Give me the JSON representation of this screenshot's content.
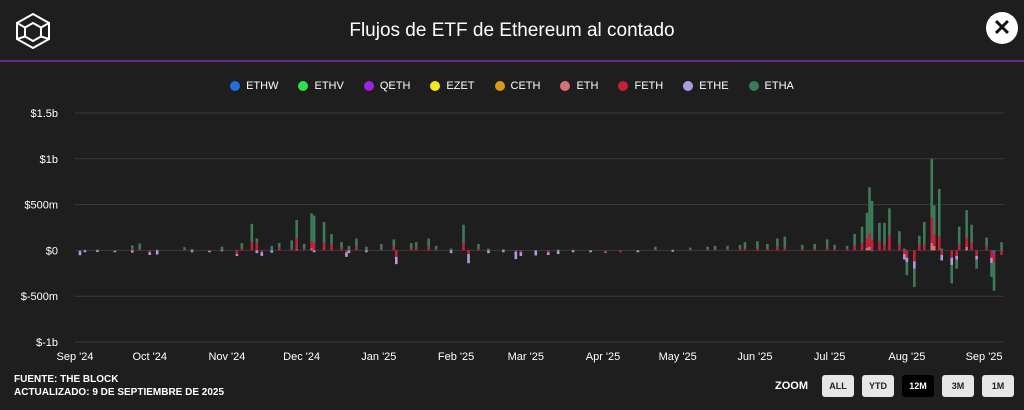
{
  "header": {
    "title": "Flujos de ETF de Ethereum al contado"
  },
  "legend": [
    {
      "name": "ETHW",
      "color": "#1f6fe0"
    },
    {
      "name": "ETHV",
      "color": "#2ee04a"
    },
    {
      "name": "QETH",
      "color": "#9a24e0"
    },
    {
      "name": "EZET",
      "color": "#f2e81a"
    },
    {
      "name": "CETH",
      "color": "#d99a1a"
    },
    {
      "name": "ETH",
      "color": "#d9707a"
    },
    {
      "name": "FETH",
      "color": "#c4203a"
    },
    {
      "name": "ETHE",
      "color": "#b09be0"
    },
    {
      "name": "ETHA",
      "color": "#3d7a5a"
    }
  ],
  "footer": {
    "source": "FUENTE: THE BLOCK",
    "updated": "ACTUALIZADO: 9 DE SEPTIEMBRE DE 2025"
  },
  "zoom": {
    "label": "ZOOM",
    "buttons": [
      {
        "label": "ALL",
        "active": false
      },
      {
        "label": "YTD",
        "active": false
      },
      {
        "label": "12M",
        "active": true
      },
      {
        "label": "3M",
        "active": false
      },
      {
        "label": "1M",
        "active": false
      }
    ]
  },
  "chart_data": {
    "type": "bar",
    "stacked": true,
    "xlabel": "",
    "ylabel": "",
    "ylim": [
      -1000,
      1500
    ],
    "y_ticks": [
      {
        "value": 1500,
        "label": "$1.5b"
      },
      {
        "value": 1000,
        "label": "$1b"
      },
      {
        "value": 500,
        "label": "$500m"
      },
      {
        "value": 0,
        "label": "$0"
      },
      {
        "value": -500,
        "label": "$-500m"
      },
      {
        "value": -1000,
        "label": "$-1b"
      }
    ],
    "x_range": [
      "2024-09-01",
      "2025-09-09"
    ],
    "x_ticks": [
      {
        "date": "2024-09-01",
        "label": "Sep '24"
      },
      {
        "date": "2024-10-01",
        "label": "Oct '24"
      },
      {
        "date": "2024-11-01",
        "label": "Nov '24"
      },
      {
        "date": "2024-12-01",
        "label": "Dec '24"
      },
      {
        "date": "2025-01-01",
        "label": "Jan '25"
      },
      {
        "date": "2025-02-01",
        "label": "Feb '25"
      },
      {
        "date": "2025-03-01",
        "label": "Mar '25"
      },
      {
        "date": "2025-04-01",
        "label": "Apr '25"
      },
      {
        "date": "2025-05-01",
        "label": "May '25"
      },
      {
        "date": "2025-06-01",
        "label": "Jun '25"
      },
      {
        "date": "2025-07-01",
        "label": "Jul '25"
      },
      {
        "date": "2025-08-01",
        "label": "Aug '25"
      },
      {
        "date": "2025-09-01",
        "label": "Sep '25"
      }
    ],
    "grid": true,
    "legend_position": "top-center",
    "series_names": [
      "ETHW",
      "ETHV",
      "QETH",
      "EZET",
      "CETH",
      "ETH",
      "FETH",
      "ETHE",
      "ETHA"
    ],
    "daily_flows": [
      {
        "date": "2024-09-03",
        "ETHE": -48,
        "FETH": -5
      },
      {
        "date": "2024-09-05",
        "ETHE": -20,
        "ETHA": 8
      },
      {
        "date": "2024-09-10",
        "ETHA": 10,
        "ETHE": -18
      },
      {
        "date": "2024-09-17",
        "ETHE": -15,
        "FETH": -5
      },
      {
        "date": "2024-09-24",
        "ETHA": 35,
        "FETH": 20,
        "ETHE": -25
      },
      {
        "date": "2024-09-27",
        "ETHA": 60,
        "FETH": 15
      },
      {
        "date": "2024-10-01",
        "ETHE": -30,
        "FETH": -20
      },
      {
        "date": "2024-10-04",
        "ETHA": 10,
        "ETHE": -45
      },
      {
        "date": "2024-10-15",
        "ETHA": 25,
        "FETH": 10
      },
      {
        "date": "2024-10-18",
        "ETHA": 15,
        "ETHE": -20
      },
      {
        "date": "2024-10-25",
        "ETHE": -15,
        "FETH": -5
      },
      {
        "date": "2024-10-30",
        "ETHA": 40,
        "ETHE": -10
      },
      {
        "date": "2024-11-05",
        "FETH": -40,
        "ETHE": -20
      },
      {
        "date": "2024-11-07",
        "ETHA": 60,
        "FETH": 20
      },
      {
        "date": "2024-11-11",
        "ETHA": 200,
        "FETH": 90
      },
      {
        "date": "2024-11-13",
        "ETHA": 50,
        "FETH": 80,
        "ETHE": -30
      },
      {
        "date": "2024-11-15",
        "ETHE": -40,
        "FETH": -20
      },
      {
        "date": "2024-11-19",
        "ETHA": 40,
        "ETHW": 10,
        "ETHE": -25
      },
      {
        "date": "2024-11-22",
        "ETHA": 50,
        "FETH": 30
      },
      {
        "date": "2024-11-27",
        "ETHA": 90,
        "FETH": 20
      },
      {
        "date": "2024-11-29",
        "ETHA": 200,
        "FETH": 120,
        "ETH": 12
      },
      {
        "date": "2024-12-02",
        "ETHA": 50,
        "FETH": 20
      },
      {
        "date": "2024-12-05",
        "ETHA": 310,
        "FETH": 70,
        "ETH": 25
      },
      {
        "date": "2024-12-06",
        "ETHA": 300,
        "FETH": 80,
        "ETHE": -20
      },
      {
        "date": "2024-12-10",
        "ETHA": 230,
        "FETH": 80
      },
      {
        "date": "2024-12-13",
        "ETHA": 120,
        "FETH": 60
      },
      {
        "date": "2024-12-17",
        "ETHA": 60,
        "FETH": 30
      },
      {
        "date": "2024-12-19",
        "ETHE": -50,
        "FETH": -20
      },
      {
        "date": "2024-12-20",
        "ETHA": 50,
        "ETHE": -30
      },
      {
        "date": "2024-12-23",
        "ETHA": 90,
        "FETH": 40
      },
      {
        "date": "2024-12-27",
        "ETHA": 40,
        "ETHE": -20
      },
      {
        "date": "2025-01-02",
        "ETHA": 60,
        "FETH": 10
      },
      {
        "date": "2025-01-07",
        "ETHA": 80,
        "FETH": 40
      },
      {
        "date": "2025-01-08",
        "ETHE": -80,
        "FETH": -70
      },
      {
        "date": "2025-01-14",
        "ETHA": 60,
        "FETH": 20
      },
      {
        "date": "2025-01-16",
        "ETHA": 60,
        "FETH": 30
      },
      {
        "date": "2025-01-21",
        "ETHA": 90,
        "FETH": 40
      },
      {
        "date": "2025-01-24",
        "ETHA": 30,
        "FETH": 20
      },
      {
        "date": "2025-01-30",
        "ETHE": -30,
        "ETHA": 20
      },
      {
        "date": "2025-02-04",
        "ETHA": 200,
        "FETH": 80
      },
      {
        "date": "2025-02-06",
        "ETHE": -100,
        "FETH": -40
      },
      {
        "date": "2025-02-10",
        "ETHA": 50,
        "FETH": 20
      },
      {
        "date": "2025-02-14",
        "ETHA": 20,
        "ETHE": -30
      },
      {
        "date": "2025-02-20",
        "ETHA": 15,
        "ETHE": -20
      },
      {
        "date": "2025-02-25",
        "ETHE": -80,
        "ETHW": -15
      },
      {
        "date": "2025-02-27",
        "ETHE": -40,
        "FETH": -20
      },
      {
        "date": "2025-03-05",
        "ETHE": -50,
        "ETHA": -10
      },
      {
        "date": "2025-03-10",
        "ETHE": -30,
        "FETH": -20
      },
      {
        "date": "2025-03-14",
        "ETHA": 10,
        "ETHE": -40
      },
      {
        "date": "2025-03-20",
        "FETH": 10,
        "ETHE": -20
      },
      {
        "date": "2025-03-27",
        "ETHE": -20
      },
      {
        "date": "2025-04-02",
        "FETH": -15,
        "ETHE": -10
      },
      {
        "date": "2025-04-08",
        "FETH": -20
      },
      {
        "date": "2025-04-15",
        "ETHE": -20
      },
      {
        "date": "2025-04-22",
        "ETHA": 30,
        "FETH": 10
      },
      {
        "date": "2025-04-29",
        "ETHA": 10,
        "ETHE": -15
      },
      {
        "date": "2025-05-06",
        "ETHA": 20,
        "FETH": 10
      },
      {
        "date": "2025-05-13",
        "ETHA": 30,
        "FETH": 10
      },
      {
        "date": "2025-05-16",
        "ETHA": 40,
        "FETH": 10
      },
      {
        "date": "2025-05-21",
        "ETHA": 30,
        "FETH": 20
      },
      {
        "date": "2025-05-26",
        "ETHA": 40,
        "FETH": 20
      },
      {
        "date": "2025-05-28",
        "ETHA": 70,
        "FETH": 20
      },
      {
        "date": "2025-06-02",
        "ETHA": 80,
        "FETH": 20
      },
      {
        "date": "2025-06-06",
        "ETHA": 50,
        "FETH": 20
      },
      {
        "date": "2025-06-10",
        "ETHA": 90,
        "FETH": 40
      },
      {
        "date": "2025-06-13",
        "ETHA": 120,
        "FETH": 30
      },
      {
        "date": "2025-06-20",
        "ETHA": 40,
        "FETH": 20
      },
      {
        "date": "2025-06-25",
        "ETHA": 50,
        "FETH": 20
      },
      {
        "date": "2025-06-30",
        "ETHA": 90,
        "FETH": 30
      },
      {
        "date": "2025-07-03",
        "ETHA": 40,
        "FETH": 20
      },
      {
        "date": "2025-07-08",
        "ETHA": 30,
        "FETH": 20
      },
      {
        "date": "2025-07-11",
        "ETHA": 130,
        "FETH": 50
      },
      {
        "date": "2025-07-14",
        "ETHA": 180,
        "FETH": 80
      },
      {
        "date": "2025-07-16",
        "ETHA": 280,
        "FETH": 100,
        "ETH": 30
      },
      {
        "date": "2025-07-17",
        "ETHA": 500,
        "FETH": 150,
        "ETH": 40
      },
      {
        "date": "2025-07-18",
        "ETHA": 420,
        "FETH": 120,
        "ETHW": -10
      },
      {
        "date": "2025-07-21",
        "ETHA": 200,
        "FETH": 100
      },
      {
        "date": "2025-07-23",
        "ETHA": 240,
        "FETH": 60
      },
      {
        "date": "2025-07-25",
        "ETHA": 300,
        "FETH": 160
      },
      {
        "date": "2025-07-29",
        "ETHA": 150,
        "FETH": 60
      },
      {
        "date": "2025-07-31",
        "ETHA": 20,
        "FETH": -40,
        "ETHE": -60
      },
      {
        "date": "2025-08-01",
        "ETHA": -140,
        "FETH": -80,
        "ETHE": -50
      },
      {
        "date": "2025-08-04",
        "ETHA": -200,
        "FETH": -120,
        "ETHE": -80
      },
      {
        "date": "2025-08-06",
        "ETHA": 100,
        "FETH": 60
      },
      {
        "date": "2025-08-08",
        "ETHA": 250,
        "FETH": 60
      },
      {
        "date": "2025-08-11",
        "ETHA": 640,
        "FETH": 280,
        "ETH": 80
      },
      {
        "date": "2025-08-12",
        "ETHA": 320,
        "FETH": 120,
        "ETH": 50
      },
      {
        "date": "2025-08-14",
        "ETHA": 520,
        "FETH": 150
      },
      {
        "date": "2025-08-15",
        "ETHA": 20,
        "FETH": -50,
        "ETHE": -60
      },
      {
        "date": "2025-08-19",
        "ETHA": -200,
        "FETH": -80,
        "ETHE": -80
      },
      {
        "date": "2025-08-21",
        "ETHA": -100,
        "FETH": -60,
        "ETHE": -40
      },
      {
        "date": "2025-08-22",
        "ETHA": 200,
        "FETH": 60
      },
      {
        "date": "2025-08-25",
        "ETHA": 300,
        "FETH": 100,
        "ETH": 40
      },
      {
        "date": "2025-08-27",
        "ETHA": 200,
        "FETH": 80
      },
      {
        "date": "2025-08-29",
        "ETHA": -100,
        "FETH": -60,
        "ETHE": -40
      },
      {
        "date": "2025-09-02",
        "ETHA": 100,
        "FETH": 40
      },
      {
        "date": "2025-09-04",
        "ETHA": -150,
        "FETH": -80,
        "ETHE": -60
      },
      {
        "date": "2025-09-05",
        "ETHA": -310,
        "FETH": -100,
        "ETHW": -30
      },
      {
        "date": "2025-09-08",
        "ETHA": 90,
        "FETH": -50
      }
    ]
  }
}
